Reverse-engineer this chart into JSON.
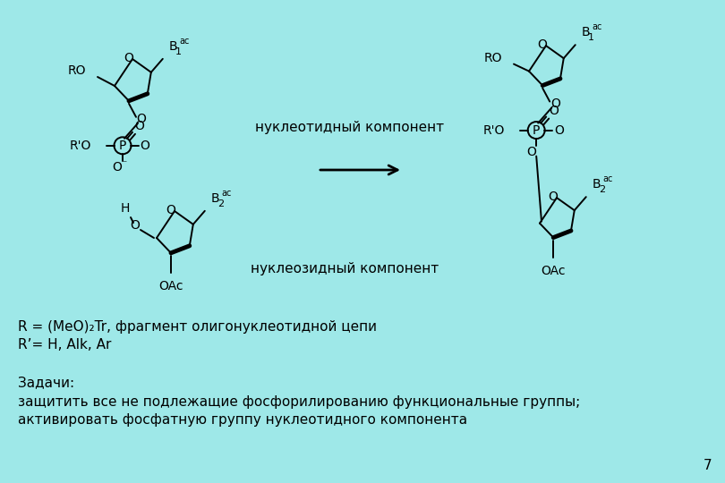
{
  "bg_color": "#9ee8e8",
  "text_color": "#000000",
  "structure_color": "#000000",
  "text_nucleotide": "нуклеотидный компонент",
  "text_nucleoside": "нуклеозидный компонент",
  "text_r1": "R = (MeO)₂Tr, фрагмент олигонуклеотидной цепи",
  "text_r2": "R’= H, Alk, Ar",
  "text_zadachi": "Задачи:",
  "text_line1": "защитить все не подлежащие фосфорилированию функциональные группы;",
  "text_line2": "активировать фосфатную группу нуклеотидного компонента",
  "page_num": "7",
  "figsize": [
    8.1,
    5.4
  ],
  "dpi": 100
}
